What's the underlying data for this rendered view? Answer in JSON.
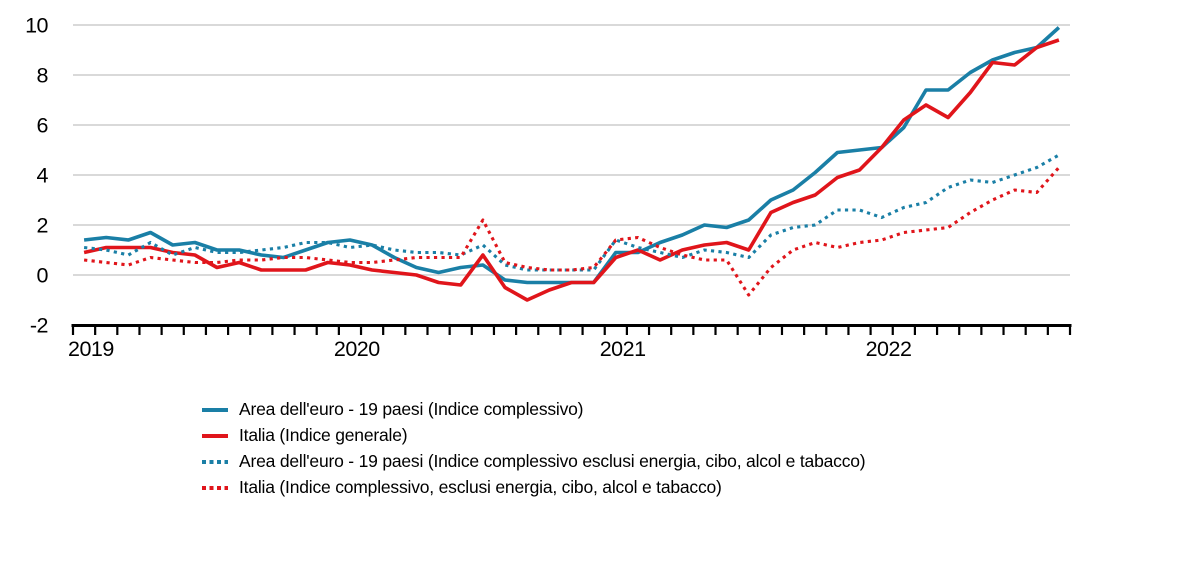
{
  "chart_data": {
    "type": "line",
    "title": "",
    "xlabel": "",
    "ylabel": "",
    "ylim": [
      -2,
      10
    ],
    "yticks": [
      -2,
      0,
      2,
      4,
      6,
      8,
      10
    ],
    "gridlines_at": [
      0,
      2,
      4,
      6,
      8,
      10
    ],
    "grid": true,
    "legend_position": "bottom-left",
    "x_start": "2019-01",
    "x_end": "2022-09",
    "year_tick_labels": [
      "2019",
      "2020",
      "2021",
      "2022"
    ],
    "months": [
      "2019-01",
      "2019-02",
      "2019-03",
      "2019-04",
      "2019-05",
      "2019-06",
      "2019-07",
      "2019-08",
      "2019-09",
      "2019-10",
      "2019-11",
      "2019-12",
      "2020-01",
      "2020-02",
      "2020-03",
      "2020-04",
      "2020-05",
      "2020-06",
      "2020-07",
      "2020-08",
      "2020-09",
      "2020-10",
      "2020-11",
      "2020-12",
      "2021-01",
      "2021-02",
      "2021-03",
      "2021-04",
      "2021-05",
      "2021-06",
      "2021-07",
      "2021-08",
      "2021-09",
      "2021-10",
      "2021-11",
      "2021-12",
      "2022-01",
      "2022-02",
      "2022-03",
      "2022-04",
      "2022-05",
      "2022-06",
      "2022-07",
      "2022-08",
      "2022-09"
    ],
    "colors": {
      "euro_area": "#1a7fa6",
      "italy": "#e0151b",
      "gridline": "#d9d9d9",
      "axis": "#000000",
      "text": "#000000"
    },
    "series": [
      {
        "name": "Area dell'euro - 19 paesi (Indice complessivo)",
        "color": "#1a7fa6",
        "style": "solid",
        "values": [
          1.4,
          1.5,
          1.4,
          1.7,
          1.2,
          1.3,
          1.0,
          1.0,
          0.8,
          0.7,
          1.0,
          1.3,
          1.4,
          1.2,
          0.7,
          0.3,
          0.1,
          0.3,
          0.4,
          -0.2,
          -0.3,
          -0.3,
          -0.3,
          -0.3,
          0.9,
          0.9,
          1.3,
          1.6,
          2.0,
          1.9,
          2.2,
          3.0,
          3.4,
          4.1,
          4.9,
          5.0,
          5.1,
          5.9,
          7.4,
          7.4,
          8.1,
          8.6,
          8.9,
          9.1,
          9.9
        ]
      },
      {
        "name": "Italia (Indice generale)",
        "color": "#e0151b",
        "style": "solid",
        "values": [
          0.9,
          1.1,
          1.1,
          1.1,
          0.9,
          0.8,
          0.3,
          0.5,
          0.2,
          0.2,
          0.2,
          0.5,
          0.4,
          0.2,
          0.1,
          0.0,
          -0.3,
          -0.4,
          0.8,
          -0.5,
          -1.0,
          -0.6,
          -0.3,
          -0.3,
          0.7,
          1.0,
          0.6,
          1.0,
          1.2,
          1.3,
          1.0,
          2.5,
          2.9,
          3.2,
          3.9,
          4.2,
          5.1,
          6.2,
          6.8,
          6.3,
          7.3,
          8.5,
          8.4,
          9.1,
          9.4
        ]
      },
      {
        "name": "Area dell'euro - 19 paesi (Indice complessivo esclusi energia, cibo, alcol e tabacco)",
        "color": "#1a7fa6",
        "style": "dotted",
        "values": [
          1.1,
          1.0,
          0.8,
          1.3,
          0.8,
          1.1,
          0.9,
          0.9,
          1.0,
          1.1,
          1.3,
          1.3,
          1.1,
          1.2,
          1.0,
          0.9,
          0.9,
          0.8,
          1.2,
          0.4,
          0.2,
          0.2,
          0.2,
          0.2,
          1.4,
          1.1,
          0.9,
          0.7,
          1.0,
          0.9,
          0.7,
          1.6,
          1.9,
          2.0,
          2.6,
          2.6,
          2.3,
          2.7,
          2.9,
          3.5,
          3.8,
          3.7,
          4.0,
          4.3,
          4.8
        ]
      },
      {
        "name": "Italia (Indice complessivo, esclusi energia, cibo, alcol e tabacco)",
        "color": "#e0151b",
        "style": "dotted",
        "values": [
          0.6,
          0.5,
          0.4,
          0.7,
          0.6,
          0.5,
          0.5,
          0.6,
          0.6,
          0.7,
          0.7,
          0.6,
          0.5,
          0.5,
          0.6,
          0.7,
          0.7,
          0.7,
          2.2,
          0.5,
          0.3,
          0.2,
          0.2,
          0.3,
          1.4,
          1.5,
          1.1,
          0.8,
          0.6,
          0.6,
          -0.8,
          0.3,
          1.0,
          1.3,
          1.1,
          1.3,
          1.4,
          1.7,
          1.8,
          1.9,
          2.5,
          3.0,
          3.4,
          3.3,
          4.3
        ]
      }
    ]
  }
}
